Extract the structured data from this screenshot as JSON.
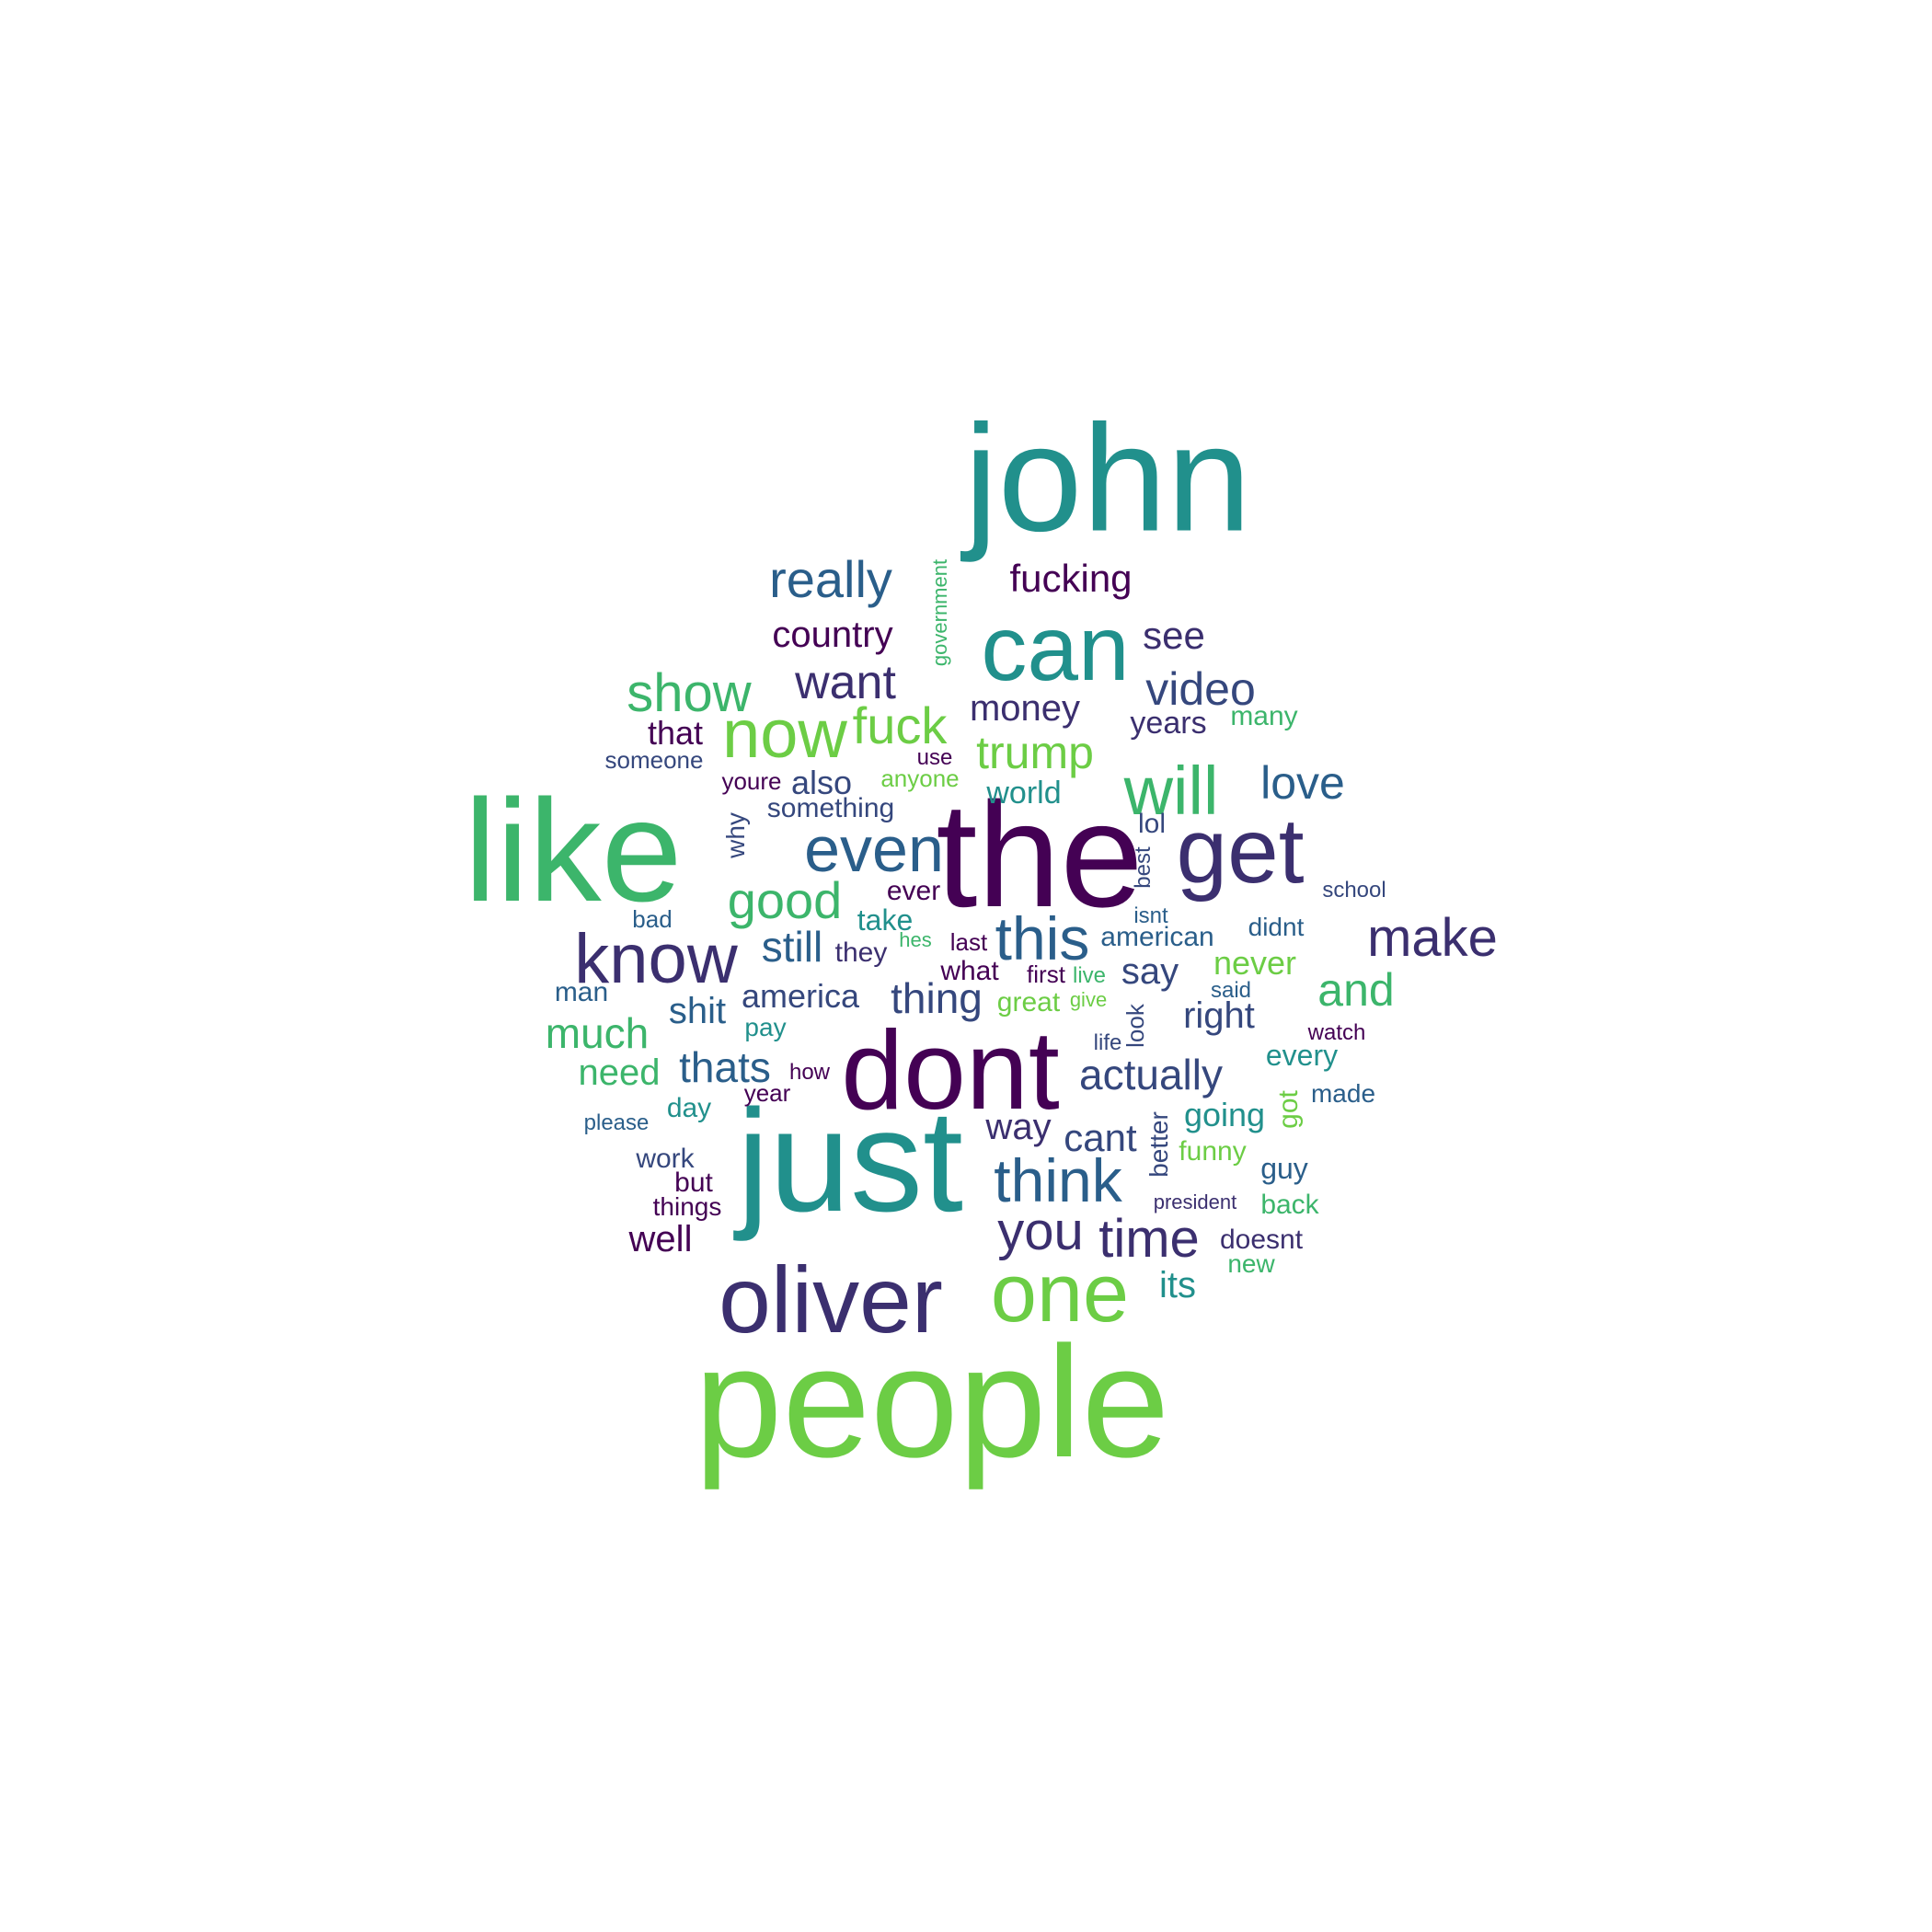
{
  "palette": {
    "dark_purple": "#440154",
    "indigo": "#3b2f6f",
    "slate_blue": "#35477d",
    "steel_blue": "#2a5e8a",
    "teal": "#21908c",
    "green": "#3cb56b",
    "lime": "#6ccd45",
    "background": "#ffffff"
  },
  "words": [
    {
      "text": "john",
      "color": "#21908c"
    },
    {
      "text": "people",
      "color": "#6ccd45"
    },
    {
      "text": "the",
      "color": "#440154"
    },
    {
      "text": "like",
      "color": "#3cb56b"
    },
    {
      "text": "just",
      "color": "#21908c"
    },
    {
      "text": "dont",
      "color": "#440154"
    },
    {
      "text": "oliver",
      "color": "#3b2f6f"
    },
    {
      "text": "can",
      "color": "#21908c"
    },
    {
      "text": "get",
      "color": "#3b2f6f"
    },
    {
      "text": "one",
      "color": "#6ccd45"
    },
    {
      "text": "know",
      "color": "#3b2f6f"
    },
    {
      "text": "even",
      "color": "#2a5e8a"
    },
    {
      "text": "will",
      "color": "#3cb56b"
    },
    {
      "text": "this",
      "color": "#2a5e8a"
    },
    {
      "text": "think",
      "color": "#2a5e8a"
    },
    {
      "text": "now",
      "color": "#6ccd45"
    },
    {
      "text": "really",
      "color": "#2a5e8a"
    },
    {
      "text": "show",
      "color": "#3cb56b"
    },
    {
      "text": "make",
      "color": "#3b2f6f"
    },
    {
      "text": "time",
      "color": "#3b2f6f"
    },
    {
      "text": "you",
      "color": "#3b2f6f"
    },
    {
      "text": "good",
      "color": "#3cb56b"
    },
    {
      "text": "want",
      "color": "#3b2f6f"
    },
    {
      "text": "video",
      "color": "#35477d"
    },
    {
      "text": "fuck",
      "color": "#6ccd45"
    },
    {
      "text": "trump",
      "color": "#6ccd45"
    },
    {
      "text": "love",
      "color": "#2a5e8a"
    },
    {
      "text": "and",
      "color": "#3cb56b"
    },
    {
      "text": "much",
      "color": "#3cb56b"
    },
    {
      "text": "actually",
      "color": "#35477d"
    },
    {
      "text": "thats",
      "color": "#2a5e8a"
    },
    {
      "text": "still",
      "color": "#2a5e8a"
    },
    {
      "text": "fucking",
      "color": "#440154"
    },
    {
      "text": "country",
      "color": "#440154"
    },
    {
      "text": "money",
      "color": "#3b2f6f"
    },
    {
      "text": "see",
      "color": "#3b2f6f"
    },
    {
      "text": "thing",
      "color": "#35477d"
    },
    {
      "text": "america",
      "color": "#35477d"
    },
    {
      "text": "shit",
      "color": "#2a5e8a"
    },
    {
      "text": "need",
      "color": "#3cb56b"
    },
    {
      "text": "way",
      "color": "#3b2f6f"
    },
    {
      "text": "cant",
      "color": "#35477d"
    },
    {
      "text": "right",
      "color": "#35477d"
    },
    {
      "text": "say",
      "color": "#35477d"
    },
    {
      "text": "also",
      "color": "#35477d"
    },
    {
      "text": "world",
      "color": "#21908c"
    },
    {
      "text": "its",
      "color": "#21908c"
    },
    {
      "text": "well",
      "color": "#440154"
    },
    {
      "text": "years",
      "color": "#3b2f6f"
    },
    {
      "text": "many",
      "color": "#3cb56b"
    },
    {
      "text": "never",
      "color": "#6ccd45"
    },
    {
      "text": "going",
      "color": "#21908c"
    },
    {
      "text": "that",
      "color": "#440154"
    },
    {
      "text": "every",
      "color": "#21908c"
    },
    {
      "text": "guy",
      "color": "#2a5e8a"
    },
    {
      "text": "funny",
      "color": "#6ccd45"
    },
    {
      "text": "back",
      "color": "#3cb56b"
    },
    {
      "text": "doesnt",
      "color": "#3b2f6f"
    },
    {
      "text": "new",
      "color": "#3cb56b"
    },
    {
      "text": "take",
      "color": "#21908c"
    },
    {
      "text": "ever",
      "color": "#440154"
    },
    {
      "text": "something",
      "color": "#35477d"
    },
    {
      "text": "someone",
      "color": "#35477d"
    },
    {
      "text": "they",
      "color": "#3b2f6f"
    },
    {
      "text": "what",
      "color": "#440154"
    },
    {
      "text": "great",
      "color": "#6ccd45"
    },
    {
      "text": "work",
      "color": "#35477d"
    },
    {
      "text": "day",
      "color": "#21908c"
    },
    {
      "text": "american",
      "color": "#2a5e8a"
    },
    {
      "text": "youre",
      "color": "#440154"
    },
    {
      "text": "anyone",
      "color": "#6ccd45"
    },
    {
      "text": "man",
      "color": "#2a5e8a"
    },
    {
      "text": "pay",
      "color": "#21908c"
    },
    {
      "text": "year",
      "color": "#440154"
    },
    {
      "text": "but",
      "color": "#440154"
    },
    {
      "text": "things",
      "color": "#440154"
    },
    {
      "text": "lol",
      "color": "#35477d"
    },
    {
      "text": "didnt",
      "color": "#2a5e8a"
    },
    {
      "text": "made",
      "color": "#2a5e8a"
    },
    {
      "text": "last",
      "color": "#440154"
    },
    {
      "text": "first",
      "color": "#440154"
    },
    {
      "text": "use",
      "color": "#440154"
    },
    {
      "text": "bad",
      "color": "#2a5e8a"
    },
    {
      "text": "please",
      "color": "#2a5e8a"
    },
    {
      "text": "president",
      "color": "#3b2f6f"
    },
    {
      "text": "watch",
      "color": "#440154"
    },
    {
      "text": "life",
      "color": "#35477d"
    },
    {
      "text": "isnt",
      "color": "#2a5e8a"
    },
    {
      "text": "hes",
      "color": "#3cb56b"
    },
    {
      "text": "how",
      "color": "#440154"
    },
    {
      "text": "live",
      "color": "#3cb56b"
    },
    {
      "text": "said",
      "color": "#2a5e8a"
    },
    {
      "text": "give",
      "color": "#6ccd45"
    },
    {
      "text": "school",
      "color": "#35477d"
    },
    {
      "text": "why",
      "color": "#35477d"
    },
    {
      "text": "government",
      "color": "#3cb56b"
    },
    {
      "text": "best",
      "color": "#35477d"
    },
    {
      "text": "look",
      "color": "#35477d"
    },
    {
      "text": "better",
      "color": "#35477d"
    },
    {
      "text": "got",
      "color": "#6ccd45"
    }
  ]
}
